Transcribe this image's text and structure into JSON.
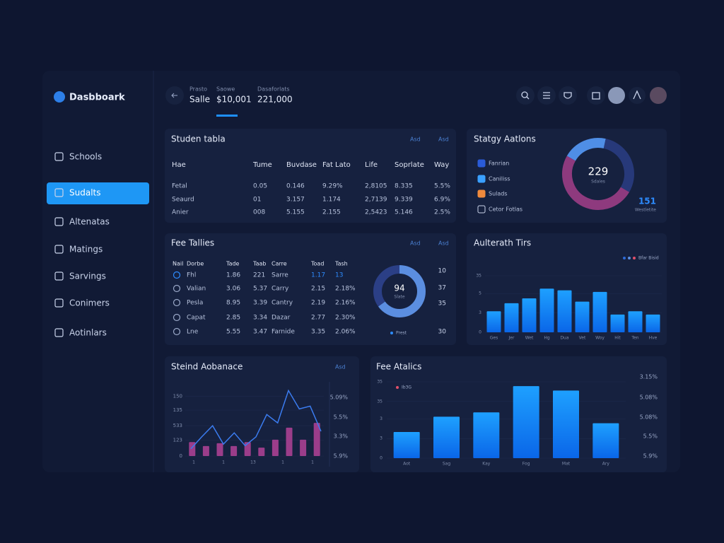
{
  "sidebar": {
    "brand": "Dasbboark",
    "items": [
      "Schools",
      "Sudalts",
      "Altenatas",
      "Matings",
      "Sarvings",
      "Conimers",
      "Aotinlars"
    ],
    "active": 1
  },
  "header": {
    "stats": [
      {
        "label": "Prasto",
        "value": "Salle"
      },
      {
        "label": "Saowe",
        "value": "$10,001"
      },
      {
        "label": "Dasaforlats",
        "value": "221,000"
      }
    ]
  },
  "student_table": {
    "title": "Studen tabla",
    "badges": [
      "Asd",
      "Asd"
    ],
    "columns": [
      "Hae",
      "Tume",
      "Buvdase",
      "Fat Lato",
      "Life",
      "Soprlate",
      "Way"
    ],
    "rows": [
      [
        "Fetal",
        "0.05",
        "0.146",
        "9.29%",
        "2,8105",
        "8.335",
        "5.5%"
      ],
      [
        "Seaurd",
        "01",
        "3.157",
        "1.174",
        "2,7139",
        "9.339",
        "6.9%"
      ],
      [
        "Anier",
        "008",
        "5.155",
        "2.155",
        "2,5423",
        "5.146",
        "2.5%"
      ]
    ]
  },
  "strategy": {
    "title": "Statgy Aatlons",
    "legend": [
      "Fanrian",
      "Caniliss",
      "Sulads",
      "Cetor Fotlas"
    ],
    "legend_colors": [
      "#2a5bd7",
      "#3aa0ff",
      "#f08a3c",
      "none"
    ],
    "donut": {
      "values": [
        20,
        30,
        50
      ],
      "colors": [
        "#4f8ee6",
        "#27397a",
        "#8e3a7e"
      ]
    },
    "center_value": "229",
    "center_label": "Sdales",
    "side_value": "151",
    "side_label": "Westletite"
  },
  "fee_tallies": {
    "title": "Fee Tallies",
    "badges": [
      "Asd",
      "Asd"
    ],
    "columns": [
      "Nail",
      "Dorbe",
      "Tade",
      "Taab",
      "Carre",
      "Toad",
      "Tash"
    ],
    "rows": [
      [
        "Fhl",
        "1.86",
        "221",
        "Sarre",
        "1.17",
        "13"
      ],
      [
        "Valian",
        "3.06",
        "5.37",
        "Carry",
        "2.15",
        "2.18%"
      ],
      [
        "Pesla",
        "8.95",
        "3.39",
        "Cantry",
        "2.19",
        "2.16%"
      ],
      [
        "Capat",
        "2.85",
        "3.34",
        "Dazar",
        "2.77",
        "2.30%"
      ],
      [
        "Lne",
        "5.55",
        "3.47",
        "Farnide",
        "3.35",
        "2.06%"
      ]
    ],
    "donut": {
      "values": [
        65,
        35
      ],
      "colors": [
        "#5b8ee0",
        "#2b3f86"
      ]
    },
    "center_value": "94",
    "center_label": "Slate",
    "right_labels": [
      "10",
      "37",
      "35",
      "30"
    ],
    "legend": "Prest"
  },
  "authorth_chart": {
    "type": "bar",
    "title": "Aulterath Tirs",
    "legend": "Bfar Bisid",
    "categories": [
      "Ges",
      "Jer",
      "Wet",
      "Hg",
      "Dua",
      "Vet",
      "Woy",
      "Hit",
      "Ten",
      "Hve"
    ],
    "values": [
      13,
      18,
      21,
      27,
      26,
      19,
      25,
      11,
      13,
      11
    ],
    "ylim": [
      0,
      35
    ],
    "yticks": [
      0,
      {
        "value": 12,
        "label": "3"
      },
      {
        "value": 24,
        "label": "5"
      },
      35
    ]
  },
  "steind_chart": {
    "type": "bar_line",
    "title": "Steind Aobanace",
    "badge": "Asd",
    "bars": [
      35,
      25,
      32,
      25,
      35,
      21,
      41,
      71,
      41,
      83
    ],
    "line": [
      18,
      48,
      76,
      30,
      58,
      26,
      48,
      104,
      83,
      164,
      118,
      125,
      62
    ],
    "ylim": [
      0,
      170
    ],
    "yticks": [
      0,
      {
        "value": 40,
        "label": "123"
      },
      {
        "value": 76,
        "label": "533"
      },
      {
        "value": 115,
        "label": "135"
      },
      150
    ],
    "xlabels": [
      "1",
      "1",
      "13",
      "1",
      "1"
    ],
    "right_labels": [
      "5.09%",
      "5.5%",
      "3.3%",
      "5.9%"
    ]
  },
  "fee_chart": {
    "type": "bar",
    "title": "Fee Atalics",
    "legend": "Ib3G",
    "categories": [
      "Aot",
      "Sag",
      "Kay",
      "Fog",
      "Mat",
      "Ary"
    ],
    "values": [
      12,
      19,
      21,
      33,
      31,
      16
    ],
    "ylim": [
      0,
      35
    ],
    "yticks": [
      0,
      {
        "value": 9,
        "label": "3"
      },
      {
        "value": 18,
        "label": "3"
      },
      {
        "value": 26,
        "label": "35"
      },
      35
    ],
    "right_labels": [
      "3.15%",
      "5.08%",
      "5.08%",
      "5.5%",
      "5.9%"
    ]
  }
}
